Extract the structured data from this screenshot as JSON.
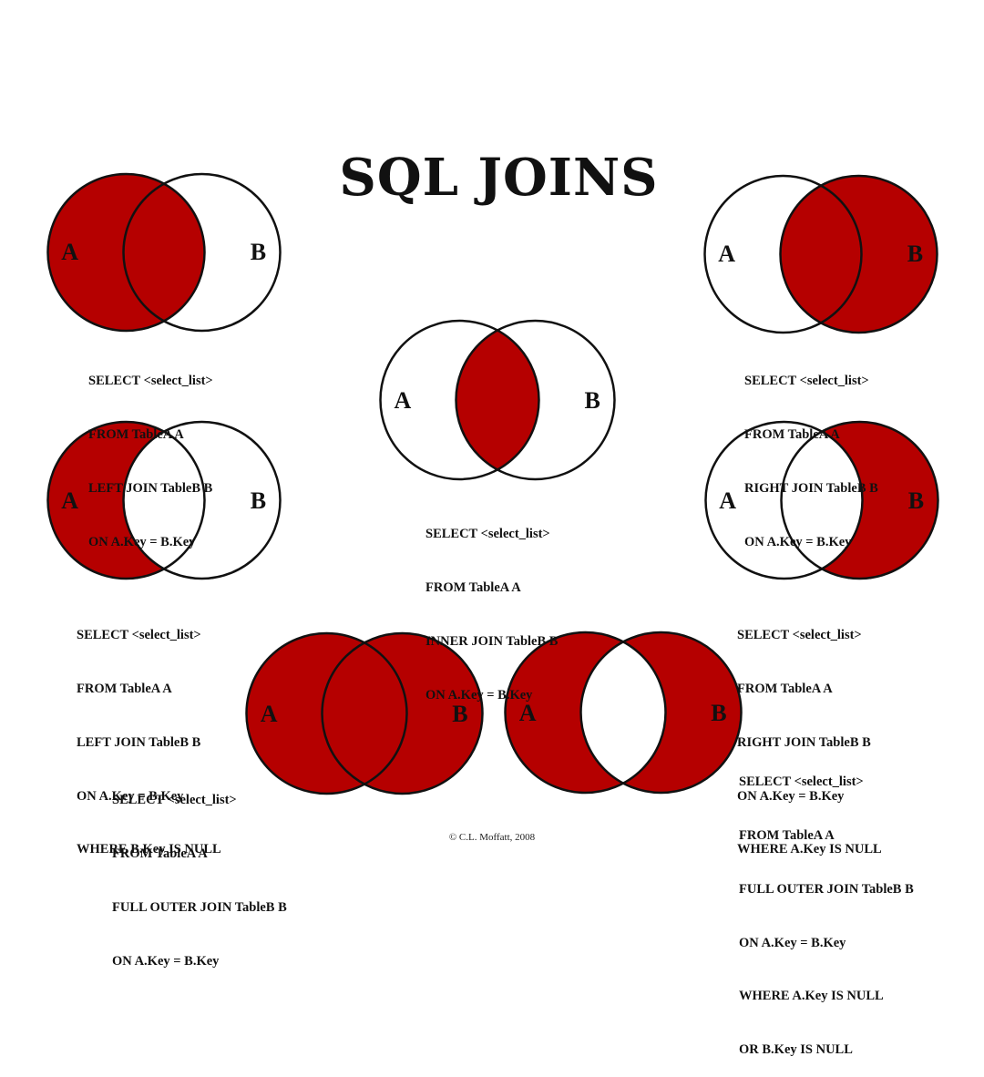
{
  "title": "SQL JOINS",
  "colors": {
    "fill": "#b50000",
    "stroke": "#111111",
    "background": "#ffffff"
  },
  "labels": {
    "a": "A",
    "b": "B"
  },
  "joins": [
    {
      "id": "left-join",
      "shade": "left",
      "sql": [
        "SELECT <select_list>",
        "FROM TableA A",
        "LEFT JOIN TableB B",
        "ON A.Key = B.Key"
      ]
    },
    {
      "id": "right-join",
      "shade": "right",
      "sql": [
        "SELECT <select_list>",
        "FROM TableA A",
        "RIGHT JOIN TableB B",
        "ON A.Key = B.Key"
      ]
    },
    {
      "id": "inner-join",
      "shade": "inner",
      "sql": [
        "SELECT <select_list>",
        "FROM TableA A",
        "INNER JOIN TableB B",
        "ON A.Key = B.Key"
      ]
    },
    {
      "id": "left-join-null",
      "shade": "left-only",
      "sql": [
        "SELECT <select_list>",
        "FROM TableA A",
        "LEFT JOIN TableB B",
        "ON A.Key = B.Key",
        "WHERE B.Key IS NULL"
      ]
    },
    {
      "id": "right-join-null",
      "shade": "right-only",
      "sql": [
        "SELECT <select_list>",
        "FROM TableA A",
        "RIGHT JOIN TableB B",
        "ON A.Key = B.Key",
        "WHERE A.Key IS NULL"
      ]
    },
    {
      "id": "full-outer-join",
      "shade": "full",
      "sql": [
        "SELECT <select_list>",
        "FROM TableA A",
        "FULL OUTER JOIN TableB B",
        "ON A.Key = B.Key"
      ]
    },
    {
      "id": "full-outer-join-null",
      "shade": "exclusive",
      "sql": [
        "SELECT <select_list>",
        "FROM TableA A",
        "FULL OUTER JOIN TableB B",
        "ON A.Key = B.Key",
        "WHERE A.Key IS NULL",
        "OR B.Key IS NULL"
      ]
    }
  ],
  "copyright": "© C.L. Moffatt, 2008"
}
